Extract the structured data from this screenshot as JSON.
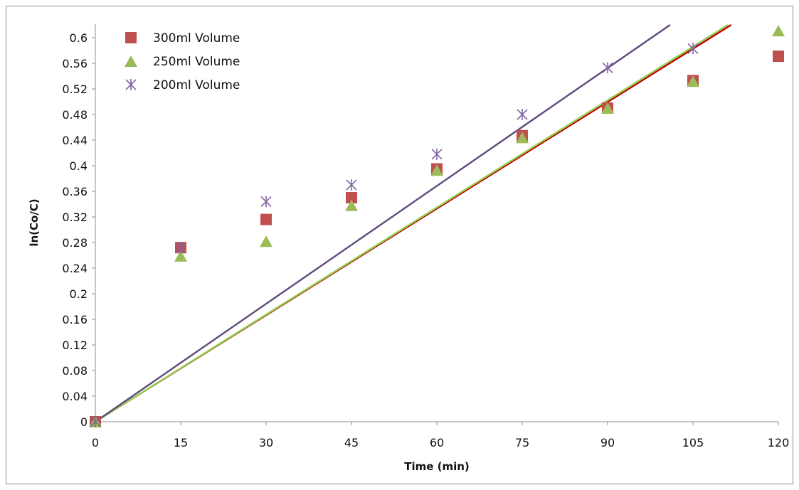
{
  "chart_data": {
    "type": "scatter",
    "xlabel": "Time (min)",
    "ylabel": "ln(Co/C)",
    "xlim": [
      0,
      120
    ],
    "ylim": [
      0,
      0.62
    ],
    "x_ticks": [
      0,
      15,
      30,
      45,
      60,
      75,
      90,
      105,
      120
    ],
    "y_ticks": [
      "0",
      "0.04",
      "0.08",
      "0.12",
      "0.16",
      "0.2",
      "0.24",
      "0.28",
      "0.32",
      "0.36",
      "0.4",
      "0.44",
      "0.48",
      "0.52",
      "0.56",
      "0.6"
    ],
    "grid": false,
    "legend_position": "top-left",
    "series": [
      {
        "name": "300ml Volume",
        "marker": "square",
        "color": "#c0504d",
        "trendline_color": "#c00000",
        "trendline_slope": 0.00555,
        "x": [
          0,
          15,
          30,
          45,
          60,
          75,
          90,
          105,
          120
        ],
        "y": [
          0,
          0.272,
          0.316,
          0.35,
          0.395,
          0.447,
          0.49,
          0.533,
          0.571
        ]
      },
      {
        "name": "250ml Volume",
        "marker": "triangle",
        "color": "#9bbb59",
        "trendline_color": "#92d050",
        "trendline_slope": 0.00558,
        "x": [
          0,
          15,
          30,
          45,
          60,
          75,
          90,
          105,
          120
        ],
        "y": [
          0,
          0.259,
          0.282,
          0.338,
          0.393,
          0.444,
          0.49,
          0.532,
          0.611
        ]
      },
      {
        "name": "200ml Volume",
        "marker": "asterisk",
        "color": "#8064a2",
        "trendline_color": "#604a7b",
        "trendline_slope": 0.00614,
        "x": [
          0,
          15,
          30,
          45,
          60,
          75,
          90,
          105
        ],
        "y": [
          0,
          0.272,
          0.344,
          0.37,
          0.418,
          0.48,
          0.553,
          0.583
        ]
      }
    ]
  }
}
